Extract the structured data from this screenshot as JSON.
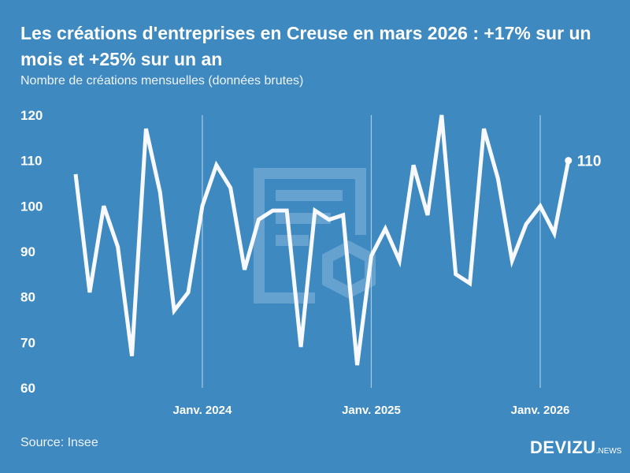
{
  "title": "Les créations d'entreprises en Creuse en mars 2026 : +17% sur un mois et +25% sur un an",
  "subtitle": "Nombre de créations mensuelles (données brutes)",
  "source": "Source: Insee",
  "logo": {
    "main": "DEVIZU",
    "suffix": ".NEWS"
  },
  "colors": {
    "background": "#3d89c0",
    "line": "#ffffff"
  },
  "chart_data": {
    "type": "line",
    "title": "Les créations d'entreprises en Creuse en mars 2026 : +17% sur un mois et +25% sur un an",
    "subtitle": "Nombre de créations mensuelles (données brutes)",
    "x_start": "2023-04",
    "x_end": "2026-03",
    "x_tick_labels": [
      "Janv. 2024",
      "Janv. 2025",
      "Janv. 2026"
    ],
    "x_tick_index": [
      9,
      21,
      33
    ],
    "y_ticks": [
      60,
      70,
      80,
      90,
      100,
      110,
      120
    ],
    "ylim": [
      60,
      120
    ],
    "grid": "vertical lines at year starts",
    "values": [
      107,
      81,
      100,
      91,
      67,
      117,
      103,
      77,
      81,
      100,
      109,
      104,
      86,
      97,
      99,
      99,
      69,
      99,
      97,
      98,
      65,
      89,
      95,
      88,
      109,
      98,
      120,
      85,
      83,
      117,
      106,
      88,
      96,
      100,
      94,
      110
    ],
    "last_label": "110"
  }
}
